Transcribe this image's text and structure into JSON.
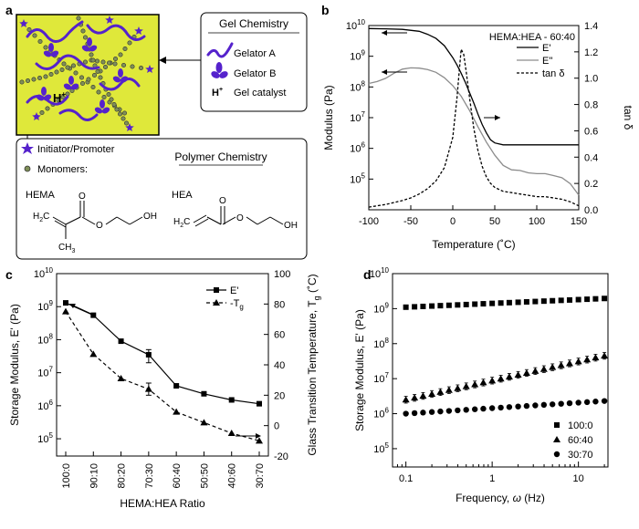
{
  "panels": {
    "a": "a",
    "b": "b",
    "c": "c",
    "d": "d"
  },
  "schematic": {
    "gel_box_title": "Gel Chemistry",
    "gel_items": [
      {
        "icon": "wavy-line-icon",
        "label": "Gelator A"
      },
      {
        "icon": "three-lobe-icon",
        "label": "Gelator B"
      },
      {
        "icon": "proton-icon",
        "label": "Gel catalyst"
      }
    ],
    "proton_base": "H",
    "proton_sup": "+",
    "initiator_label": "Initiator/Promoter",
    "monomers_label": "Monomers:",
    "polymer_title": "Polymer Chemistry",
    "hema_label": "HEMA",
    "hea_label": "HEA",
    "hema_oh": "OH",
    "hea_oh": "OH",
    "o_atom": "O",
    "h2c_base": "H",
    "h2c_sub": "2",
    "h2c_rest": "C",
    "ch3_base": "CH",
    "ch3_sub": "3",
    "colors": {
      "gel_bg": "#dfe83a",
      "gelator": "#5522cc",
      "monomer": "#7f8f58"
    }
  },
  "chart_data": [
    {
      "panel": "b",
      "type": "line",
      "title": "HEMA:HEA - 60:40",
      "xlabel": "Temperature (˚C)",
      "ylabel": "Modulus (Pa)",
      "ylabel_right": "tan δ",
      "xlim": [
        -100,
        150
      ],
      "ylim": [
        10000,
        10000000000
      ],
      "yscale": "log",
      "ylim_right": [
        0,
        1.4
      ],
      "x_ticks": [
        "-100",
        "-50",
        "0",
        "50",
        "100",
        "150"
      ],
      "y_ticks_left": [
        {
          "base": "10",
          "exp": "5"
        },
        {
          "base": "10",
          "exp": "6"
        },
        {
          "base": "10",
          "exp": "7"
        },
        {
          "base": "10",
          "exp": "8"
        },
        {
          "base": "10",
          "exp": "9"
        },
        {
          "base": "10",
          "exp": "10"
        }
      ],
      "y_ticks_right": [
        "0.0",
        "0.2",
        "0.4",
        "0.6",
        "0.8",
        "1.0",
        "1.2",
        "1.4"
      ],
      "legend_position": "top-right",
      "series": [
        {
          "name": "E'",
          "axis": "left",
          "style": "solid",
          "color": "#000000",
          "x": [
            -100,
            -80,
            -60,
            -40,
            -30,
            -20,
            -10,
            0,
            5,
            10,
            15,
            20,
            25,
            30,
            35,
            40,
            45,
            50,
            60,
            80,
            100,
            120,
            140,
            150
          ],
          "y": [
            8000000000,
            7800000000,
            7500000000,
            6500000000,
            5200000000,
            3800000000,
            2200000000,
            900000000,
            520000000,
            280000000,
            140000000,
            65000000,
            30000000,
            13000000,
            6000000,
            3200000,
            1900000,
            1500000,
            1300000,
            1300000,
            1300000,
            1300000,
            1300000,
            1300000
          ]
        },
        {
          "name": "E''",
          "axis": "left",
          "style": "solid",
          "color": "#8c8c8c",
          "x": [
            -100,
            -90,
            -80,
            -70,
            -60,
            -50,
            -40,
            -30,
            -20,
            -10,
            0,
            10,
            20,
            30,
            40,
            50,
            60,
            70,
            80,
            90,
            100,
            110,
            120,
            130,
            140,
            150
          ],
          "y": [
            130000000,
            150000000,
            190000000,
            280000000,
            380000000,
            420000000,
            410000000,
            370000000,
            300000000,
            200000000,
            110000000,
            50000000,
            17000000,
            5000000,
            1600000,
            600000,
            280000,
            200000,
            190000,
            160000,
            150000,
            150000,
            130000,
            110000,
            70000,
            30000
          ]
        },
        {
          "name": "tan δ",
          "axis": "right",
          "style": "dashed",
          "color": "#000000",
          "x": [
            -100,
            -80,
            -60,
            -50,
            -40,
            -30,
            -20,
            -10,
            0,
            5,
            8,
            10,
            13,
            16,
            20,
            25,
            30,
            35,
            40,
            45,
            50,
            60,
            70,
            80,
            90,
            100,
            110,
            120,
            130,
            140,
            150
          ],
          "y": [
            0.02,
            0.04,
            0.07,
            0.09,
            0.12,
            0.16,
            0.22,
            0.32,
            0.55,
            0.85,
            1.08,
            1.22,
            1.18,
            1.05,
            0.85,
            0.62,
            0.45,
            0.33,
            0.25,
            0.2,
            0.17,
            0.14,
            0.13,
            0.12,
            0.11,
            0.1,
            0.1,
            0.09,
            0.08,
            0.06,
            0.03
          ]
        }
      ]
    },
    {
      "panel": "c",
      "type": "line",
      "xlabel": "HEMA:HEA Ratio",
      "ylabel": "Storage Modulus, E' (Pa)",
      "ylabel_right_base": "Glass Transition Temperature, T",
      "ylabel_right_sub": "g",
      "ylabel_right_unit": " (˚C)",
      "categories": [
        "100:0",
        "90:10",
        "80:20",
        "70:30",
        "60:40",
        "50:50",
        "40:60",
        "30:70"
      ],
      "ylim": [
        30000,
        10000000000
      ],
      "yscale": "log",
      "ylim_right": [
        -20,
        100
      ],
      "y_ticks_left": [
        {
          "base": "10",
          "exp": "5"
        },
        {
          "base": "10",
          "exp": "6"
        },
        {
          "base": "10",
          "exp": "7"
        },
        {
          "base": "10",
          "exp": "8"
        },
        {
          "base": "10",
          "exp": "9"
        },
        {
          "base": "10",
          "exp": "10"
        }
      ],
      "y_ticks_right": [
        "-20",
        "0",
        "20",
        "40",
        "60",
        "80",
        "100"
      ],
      "legend_position": "top-right",
      "series": [
        {
          "name": "E'",
          "axis": "left",
          "style": "solid",
          "marker": "square",
          "values": [
            1300000000,
            550000000,
            90000000,
            35000000,
            4000000,
            2300000,
            1500000,
            1150000
          ],
          "errors": [
            0,
            0,
            0,
            15000000,
            0,
            0,
            0,
            0
          ]
        },
        {
          "name": "-T",
          "name_sub": "g",
          "axis": "right",
          "style": "dashed",
          "marker": "triangle",
          "values": [
            75,
            47,
            31,
            24,
            9,
            2,
            -5,
            -10
          ],
          "errors": [
            0,
            0,
            0,
            4,
            0,
            0,
            0,
            0
          ]
        }
      ]
    },
    {
      "panel": "d",
      "type": "scatter",
      "xlabel_base": "Frequency, ",
      "xlabel_var": "ω",
      "xlabel_unit": " (Hz)",
      "ylabel": "Storage Modulus, E' (Pa)",
      "xscale": "log",
      "yscale": "log",
      "xlim": [
        0.07,
        22
      ],
      "ylim": [
        30000,
        10000000000
      ],
      "x_ticks": [
        "0.1",
        "1",
        "10"
      ],
      "y_ticks_left": [
        {
          "base": "10",
          "exp": "5"
        },
        {
          "base": "10",
          "exp": "6"
        },
        {
          "base": "10",
          "exp": "7"
        },
        {
          "base": "10",
          "exp": "8"
        },
        {
          "base": "10",
          "exp": "9"
        },
        {
          "base": "10",
          "exp": "10"
        }
      ],
      "legend_position": "bottom-right",
      "x": [
        0.1,
        0.126,
        0.158,
        0.2,
        0.251,
        0.316,
        0.398,
        0.5,
        0.63,
        0.79,
        1.0,
        1.26,
        1.58,
        2.0,
        2.51,
        3.16,
        3.98,
        5.0,
        6.3,
        7.9,
        10,
        12.6,
        15.8,
        20
      ],
      "series": [
        {
          "name": "100:0",
          "marker": "square",
          "y_start": 1100000000,
          "y_end": 1950000000
        },
        {
          "name": "60:40",
          "marker": "triangle",
          "y_start": 2500000,
          "y_end": 45000000,
          "rel_error": 0.25
        },
        {
          "name": "30:70",
          "marker": "circle",
          "y_start": 1000000,
          "y_end": 2300000
        }
      ]
    }
  ]
}
